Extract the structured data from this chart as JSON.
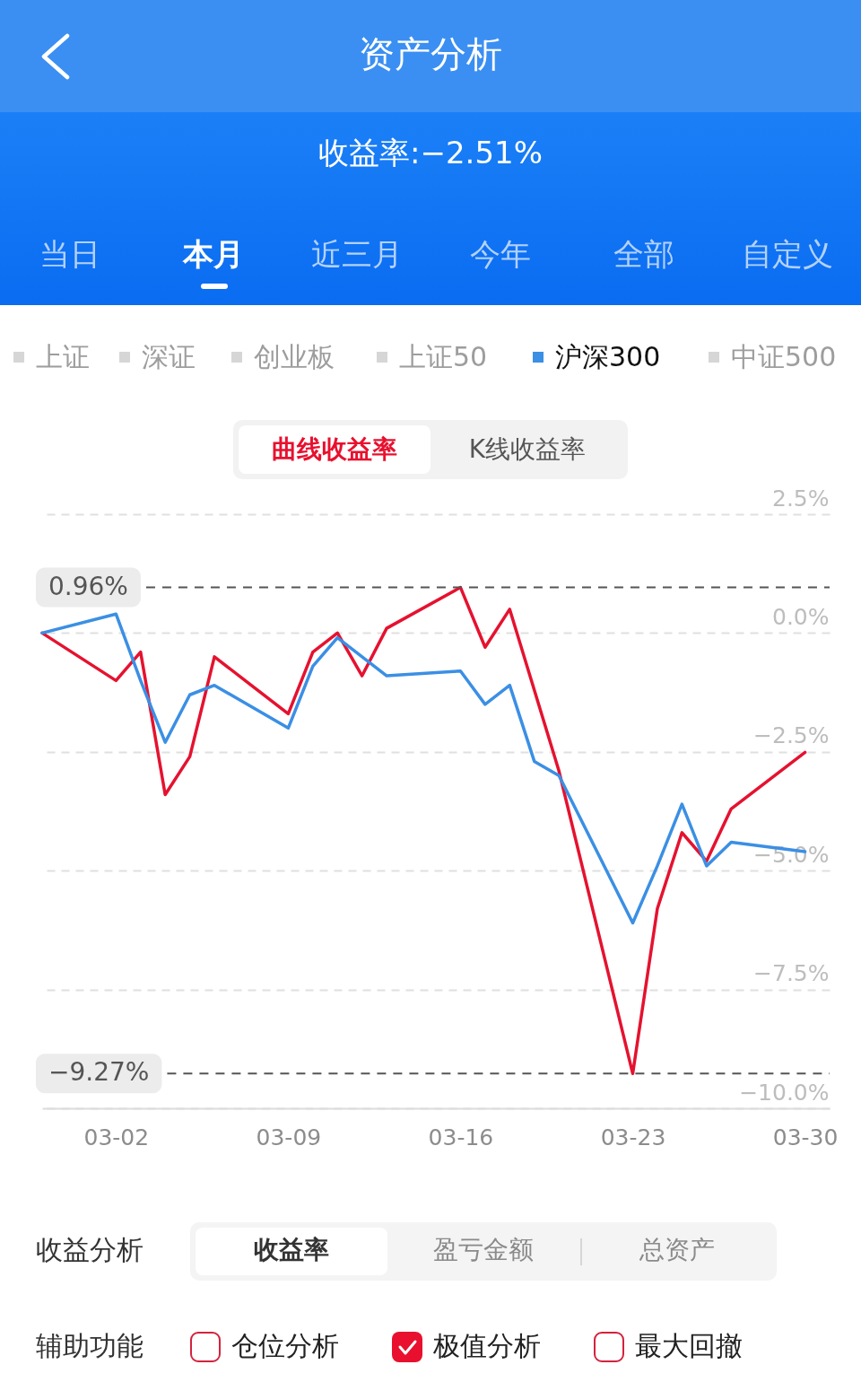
{
  "chart_data": {
    "type": "line",
    "title": "资产分析",
    "subtitle": "收益率:−2.51%",
    "annotations": [
      "当日",
      "本月",
      "近三月",
      "今年",
      "全部",
      "自定义",
      "上证",
      "深证",
      "创业板",
      "上证50",
      "中证500",
      "曲线收益率",
      "K线收益率",
      "收益分析",
      "收益率",
      "盈亏金额",
      "总资产",
      "辅助功能",
      "仓位分析",
      "极值分析",
      "最大回撤"
    ],
    "x": [
      "--02-27",
      "--03-02",
      "--03-03",
      "--03-04",
      "--03-05",
      "--03-06",
      "--03-09",
      "--03-10",
      "--03-11",
      "--03-12",
      "--03-13",
      "--03-16",
      "--03-17",
      "--03-18",
      "--03-19",
      "--03-20",
      "--03-23",
      "--03-24",
      "--03-25",
      "--03-26",
      "--03-27",
      "--03-30"
    ],
    "series": [
      {
        "color": "#e5122f",
        "values": [
          0,
          -1.0,
          -0.4,
          -3.4,
          -2.6,
          -0.5,
          -1.7,
          -0.4,
          0,
          -0.9,
          0.1,
          0.96,
          -0.3,
          0.5,
          -1.2,
          -2.9,
          -9.27,
          -5.8,
          -4.2,
          -4.8,
          -3.7,
          -2.51
        ]
      },
      {
        "name": "沪深300",
        "color": "#3b8fe4",
        "values": [
          0,
          0.4,
          -1.0,
          -2.3,
          -1.3,
          -1.1,
          -2.0,
          -0.7,
          -0.1,
          -0.5,
          -0.9,
          -0.8,
          -1.5,
          -1.1,
          -2.7,
          -3.0,
          -6.1,
          -4.9,
          -3.6,
          -4.9,
          -4.4,
          -4.6
        ]
      }
    ],
    "xlim": [
      "--02-27",
      "--03-31"
    ],
    "xticks": [
      {
        "value": "--03-02",
        "label": "03-02"
      },
      {
        "value": "--03-09",
        "label": "03-09"
      },
      {
        "value": "--03-16",
        "label": "03-16"
      },
      {
        "value": "--03-23",
        "label": "03-23"
      },
      {
        "value": "--03-30",
        "label": "03-30"
      }
    ],
    "ylim": [
      -10,
      2.5
    ],
    "yticks": [
      {
        "value": 2.5,
        "label": "2.5%"
      },
      {
        "value": 0,
        "label": "0.0%"
      },
      {
        "value": -2.5,
        "label": "−2.5%"
      },
      {
        "value": -5,
        "label": "−5.0%"
      },
      {
        "value": -7.5,
        "label": "−7.5%"
      },
      {
        "value": -10,
        "label": "−10.0%"
      }
    ],
    "ref_lines": [
      {
        "axis": "y",
        "value": 0.96,
        "label": "0.96%",
        "color": "#555555",
        "line_style": "dashed"
      },
      {
        "axis": "y",
        "value": -9.27,
        "label": "−9.27%",
        "color": "#555555",
        "line_style": "dashed"
      }
    ],
    "grid": "y",
    "legend": "top"
  }
}
